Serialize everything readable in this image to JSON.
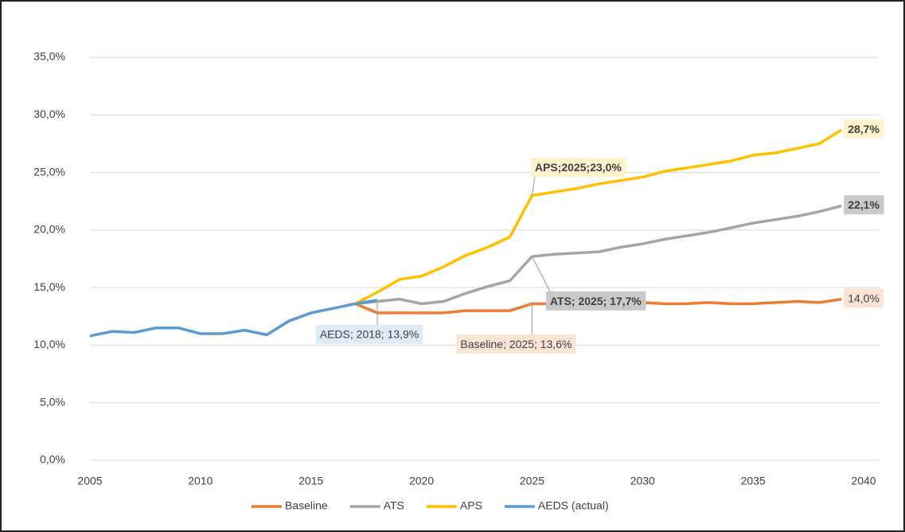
{
  "chart_data": {
    "type": "line",
    "x": [
      2005,
      2006,
      2007,
      2008,
      2009,
      2010,
      2011,
      2012,
      2013,
      2014,
      2015,
      2016,
      2017,
      2018,
      2019,
      2020,
      2021,
      2022,
      2023,
      2024,
      2025,
      2026,
      2027,
      2028,
      2029,
      2030,
      2031,
      2032,
      2033,
      2034,
      2035,
      2036,
      2037,
      2038,
      2039
    ],
    "xlim": [
      2005,
      2040
    ],
    "xticks": [
      2005,
      2010,
      2015,
      2020,
      2025,
      2030,
      2035,
      2040
    ],
    "ylim": [
      0,
      35
    ],
    "yticks": [
      {
        "value": 0,
        "label": "0,0%"
      },
      {
        "value": 5,
        "label": "5,0%"
      },
      {
        "value": 10,
        "label": "10,0%"
      },
      {
        "value": 15,
        "label": "15,0%"
      },
      {
        "value": 20,
        "label": "20,0%"
      },
      {
        "value": 25,
        "label": "25,0%"
      },
      {
        "value": 30,
        "label": "30,0%"
      },
      {
        "value": 35,
        "label": "35,0%"
      }
    ],
    "grid": true,
    "legend": "bottom",
    "series": [
      {
        "name": "Baseline",
        "color": "#ed7d31",
        "values": [
          null,
          null,
          null,
          null,
          null,
          null,
          null,
          null,
          null,
          null,
          null,
          null,
          13.6,
          12.8,
          12.8,
          12.8,
          12.8,
          13.0,
          13.0,
          13.0,
          13.6,
          13.6,
          13.4,
          13.5,
          13.5,
          13.7,
          13.6,
          13.6,
          13.7,
          13.6,
          13.6,
          13.7,
          13.8,
          13.7,
          14.0
        ],
        "value_labels": [
          null,
          null,
          null,
          null,
          null,
          null,
          null,
          null,
          null,
          null,
          null,
          null,
          null,
          null,
          null,
          null,
          null,
          null,
          null,
          null,
          "Baseline; 2025; 13,6%",
          null,
          null,
          null,
          null,
          null,
          null,
          null,
          null,
          null,
          null,
          null,
          null,
          null,
          "14,0%"
        ]
      },
      {
        "name": "ATS",
        "color": "#a5a5a5",
        "values": [
          null,
          null,
          null,
          null,
          null,
          null,
          null,
          null,
          null,
          null,
          null,
          null,
          13.6,
          13.8,
          14.0,
          13.6,
          13.8,
          14.5,
          15.1,
          15.6,
          17.7,
          17.9,
          18.0,
          18.1,
          18.5,
          18.8,
          19.2,
          19.5,
          19.8,
          20.2,
          20.6,
          20.9,
          21.2,
          21.6,
          22.1
        ],
        "value_labels": [
          null,
          null,
          null,
          null,
          null,
          null,
          null,
          null,
          null,
          null,
          null,
          null,
          null,
          null,
          null,
          null,
          null,
          null,
          null,
          null,
          "ATS; 2025; 17,7%",
          null,
          null,
          null,
          null,
          null,
          null,
          null,
          null,
          null,
          null,
          null,
          null,
          null,
          "22,1%"
        ]
      },
      {
        "name": "APS",
        "color": "#ffc000",
        "values": [
          null,
          null,
          null,
          null,
          null,
          null,
          null,
          null,
          null,
          null,
          null,
          null,
          13.6,
          14.6,
          15.7,
          16.0,
          16.8,
          17.8,
          18.5,
          19.4,
          23.0,
          23.3,
          23.6,
          24.0,
          24.3,
          24.6,
          25.1,
          25.4,
          25.7,
          26.0,
          26.5,
          26.7,
          27.1,
          27.5,
          28.7
        ],
        "value_labels": [
          null,
          null,
          null,
          null,
          null,
          null,
          null,
          null,
          null,
          null,
          null,
          null,
          null,
          null,
          null,
          null,
          null,
          null,
          null,
          null,
          "APS;2025;23,0%",
          null,
          null,
          null,
          null,
          null,
          null,
          null,
          null,
          null,
          null,
          null,
          null,
          null,
          "28,7%"
        ]
      },
      {
        "name": "AEDS (actual)",
        "color": "#5b9bd5",
        "values": [
          10.8,
          11.2,
          11.1,
          11.5,
          11.5,
          11.0,
          11.0,
          11.3,
          10.9,
          12.1,
          12.8,
          13.2,
          13.6,
          13.9,
          null,
          null,
          null,
          null,
          null,
          null,
          null,
          null,
          null,
          null,
          null,
          null,
          null,
          null,
          null,
          null,
          null,
          null,
          null,
          null,
          null
        ],
        "value_labels": [
          null,
          null,
          null,
          null,
          null,
          null,
          null,
          null,
          null,
          null,
          null,
          null,
          null,
          "AEDS; 2018; 13,9%",
          null,
          null,
          null,
          null,
          null,
          null,
          null,
          null,
          null,
          null,
          null,
          null,
          null,
          null,
          null,
          null,
          null,
          null,
          null,
          null,
          null
        ]
      }
    ]
  }
}
